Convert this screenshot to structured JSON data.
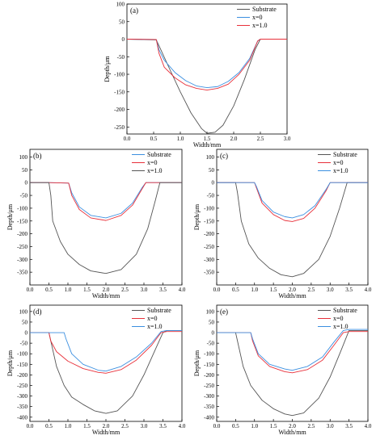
{
  "colors": {
    "substrate": "#555555",
    "x0": "#e8303a",
    "x10": "#3b8fe0"
  },
  "chart_data": [
    {
      "type": "line",
      "panel_label": "(a)",
      "xlabel": "Width/mm",
      "ylabel": "Depth/μm",
      "xlim": [
        0,
        3
      ],
      "ylim": [
        -270,
        100
      ],
      "xticks": [
        "0.0",
        "0.5",
        "1.0",
        "1.5",
        "2.0",
        "2.5",
        "3.0"
      ],
      "yticks": [
        "100",
        "50",
        "0",
        "-50",
        "-100",
        "-150",
        "-200",
        "-250"
      ],
      "legend_position": "top-right",
      "series": [
        {
          "name": "Substrate",
          "color_key": "substrate",
          "points": [
            [
              0,
              0
            ],
            [
              0.55,
              -2
            ],
            [
              0.62,
              -25
            ],
            [
              0.8,
              -85
            ],
            [
              1.0,
              -150
            ],
            [
              1.2,
              -210
            ],
            [
              1.4,
              -255
            ],
            [
              1.5,
              -268
            ],
            [
              1.65,
              -265
            ],
            [
              1.8,
              -245
            ],
            [
              2.0,
              -190
            ],
            [
              2.2,
              -115
            ],
            [
              2.4,
              -30
            ],
            [
              2.5,
              0
            ],
            [
              3.0,
              0
            ]
          ]
        },
        {
          "name": "x=0",
          "color_key": "x10",
          "points": [
            [
              0,
              0
            ],
            [
              0.55,
              -1
            ],
            [
              0.6,
              -30
            ],
            [
              0.7,
              -60
            ],
            [
              0.9,
              -95
            ],
            [
              1.1,
              -118
            ],
            [
              1.3,
              -133
            ],
            [
              1.5,
              -138
            ],
            [
              1.7,
              -135
            ],
            [
              1.9,
              -120
            ],
            [
              2.1,
              -95
            ],
            [
              2.3,
              -55
            ],
            [
              2.45,
              -5
            ],
            [
              2.5,
              0
            ],
            [
              3.0,
              0
            ]
          ]
        },
        {
          "name": "x=1.0",
          "color_key": "x0",
          "points": [
            [
              0,
              0
            ],
            [
              0.55,
              -1
            ],
            [
              0.6,
              -40
            ],
            [
              0.7,
              -80
            ],
            [
              0.9,
              -110
            ],
            [
              1.1,
              -130
            ],
            [
              1.3,
              -140
            ],
            [
              1.5,
              -145
            ],
            [
              1.7,
              -140
            ],
            [
              1.9,
              -128
            ],
            [
              2.1,
              -100
            ],
            [
              2.3,
              -60
            ],
            [
              2.45,
              -5
            ],
            [
              2.5,
              0
            ],
            [
              3.0,
              0
            ]
          ]
        }
      ]
    },
    {
      "type": "line",
      "panel_label": "(b)",
      "xlabel": "Width/mm",
      "ylabel": "Depth/μm",
      "xlim": [
        0,
        4
      ],
      "ylim": [
        -400,
        130
      ],
      "xticks": [
        "0.0",
        "0.5",
        "1.0",
        "1.5",
        "2.0",
        "2.5",
        "3.0",
        "3.5",
        "4.0"
      ],
      "yticks": [
        "100",
        "50",
        "0",
        "-50",
        "-100",
        "-150",
        "-200",
        "-250",
        "-300",
        "-350"
      ],
      "legend_position": "top-right",
      "series": [
        {
          "name": "Substrate",
          "color_key": "x10",
          "points": [
            [
              0,
              0
            ],
            [
              0.5,
              0
            ],
            [
              1.02,
              -2
            ],
            [
              1.1,
              -40
            ],
            [
              1.3,
              -95
            ],
            [
              1.6,
              -128
            ],
            [
              2.0,
              -138
            ],
            [
              2.4,
              -120
            ],
            [
              2.7,
              -80
            ],
            [
              2.95,
              -20
            ],
            [
              3.05,
              0
            ],
            [
              4.0,
              0
            ]
          ]
        },
        {
          "name": "x=0",
          "color_key": "x0",
          "points": [
            [
              0,
              0
            ],
            [
              0.5,
              0
            ],
            [
              1.02,
              -2
            ],
            [
              1.1,
              -50
            ],
            [
              1.3,
              -105
            ],
            [
              1.6,
              -138
            ],
            [
              2.0,
              -148
            ],
            [
              2.4,
              -128
            ],
            [
              2.7,
              -88
            ],
            [
              2.95,
              -25
            ],
            [
              3.05,
              0
            ],
            [
              4.0,
              0
            ]
          ]
        },
        {
          "name": "x=1.0",
          "color_key": "substrate",
          "points": [
            [
              0,
              0
            ],
            [
              0.5,
              0
            ],
            [
              0.55,
              -50
            ],
            [
              0.6,
              -150
            ],
            [
              0.8,
              -230
            ],
            [
              1.0,
              -280
            ],
            [
              1.3,
              -320
            ],
            [
              1.6,
              -345
            ],
            [
              2.0,
              -355
            ],
            [
              2.4,
              -340
            ],
            [
              2.8,
              -280
            ],
            [
              3.1,
              -180
            ],
            [
              3.3,
              -70
            ],
            [
              3.42,
              0
            ],
            [
              4.0,
              0
            ]
          ]
        }
      ]
    },
    {
      "type": "line",
      "panel_label": "(c)",
      "xlabel": "Width/mm",
      "ylabel": "Depth/μm",
      "xlim": [
        0,
        4
      ],
      "ylim": [
        -400,
        130
      ],
      "xticks": [
        "0.0",
        "0.5",
        "1.0",
        "1.5",
        "2.0",
        "2.5",
        "3.0",
        "3.5",
        "4.0"
      ],
      "yticks": [
        "100",
        "50",
        "0",
        "-50",
        "-100",
        "-150",
        "-200",
        "-250",
        "-300",
        "-350"
      ],
      "legend_position": "top-right",
      "series": [
        {
          "name": "Substrate",
          "color_key": "substrate",
          "points": [
            [
              0,
              0
            ],
            [
              0.5,
              0
            ],
            [
              0.55,
              -40
            ],
            [
              0.65,
              -150
            ],
            [
              0.85,
              -240
            ],
            [
              1.1,
              -295
            ],
            [
              1.4,
              -335
            ],
            [
              1.7,
              -360
            ],
            [
              2.0,
              -368
            ],
            [
              2.3,
              -355
            ],
            [
              2.7,
              -300
            ],
            [
              3.0,
              -210
            ],
            [
              3.25,
              -100
            ],
            [
              3.45,
              0
            ],
            [
              4.0,
              0
            ]
          ]
        },
        {
          "name": "x=0",
          "color_key": "x0",
          "points": [
            [
              0,
              0
            ],
            [
              1.0,
              0
            ],
            [
              1.05,
              -20
            ],
            [
              1.2,
              -80
            ],
            [
              1.5,
              -125
            ],
            [
              1.8,
              -148
            ],
            [
              2.0,
              -152
            ],
            [
              2.3,
              -140
            ],
            [
              2.6,
              -100
            ],
            [
              2.9,
              -30
            ],
            [
              3.0,
              0
            ],
            [
              4.0,
              0
            ]
          ]
        },
        {
          "name": "x=1.0",
          "color_key": "x10",
          "points": [
            [
              0,
              0
            ],
            [
              1.0,
              0
            ],
            [
              1.05,
              -15
            ],
            [
              1.2,
              -70
            ],
            [
              1.5,
              -115
            ],
            [
              1.8,
              -133
            ],
            [
              2.0,
              -138
            ],
            [
              2.3,
              -125
            ],
            [
              2.6,
              -90
            ],
            [
              2.9,
              -25
            ],
            [
              3.0,
              0
            ],
            [
              4.0,
              0
            ]
          ]
        }
      ]
    },
    {
      "type": "line",
      "panel_label": "(d)",
      "xlabel": "Width/mm",
      "ylabel": "Depth/μm",
      "xlim": [
        0,
        4
      ],
      "ylim": [
        -420,
        130
      ],
      "xticks": [
        "0.0",
        "0.5",
        "1.0",
        "1.5",
        "2.0",
        "2.5",
        "3.0",
        "3.5",
        "4.0"
      ],
      "yticks": [
        "100",
        "50",
        "0",
        "-50",
        "-100",
        "-150",
        "-200",
        "-250",
        "-300",
        "-350",
        "-400"
      ],
      "legend_position": "top-right",
      "series": [
        {
          "name": "Substrate",
          "color_key": "substrate",
          "points": [
            [
              0,
              0
            ],
            [
              0.5,
              0
            ],
            [
              0.55,
              -40
            ],
            [
              0.7,
              -160
            ],
            [
              0.9,
              -250
            ],
            [
              1.1,
              -305
            ],
            [
              1.4,
              -340
            ],
            [
              1.7,
              -370
            ],
            [
              2.0,
              -382
            ],
            [
              2.3,
              -370
            ],
            [
              2.7,
              -300
            ],
            [
              3.0,
              -200
            ],
            [
              3.3,
              -80
            ],
            [
              3.5,
              0
            ],
            [
              3.6,
              10
            ],
            [
              4.0,
              10
            ]
          ]
        },
        {
          "name": "x=0",
          "color_key": "x0",
          "points": [
            [
              0,
              0
            ],
            [
              0.5,
              0
            ],
            [
              0.55,
              -40
            ],
            [
              0.7,
              -90
            ],
            [
              1.0,
              -135
            ],
            [
              1.4,
              -170
            ],
            [
              1.8,
              -188
            ],
            [
              2.0,
              -192
            ],
            [
              2.4,
              -175
            ],
            [
              2.8,
              -130
            ],
            [
              3.2,
              -60
            ],
            [
              3.45,
              0
            ],
            [
              3.6,
              5
            ],
            [
              4.0,
              5
            ]
          ]
        },
        {
          "name": "x=1.0",
          "color_key": "x10",
          "points": [
            [
              0,
              0
            ],
            [
              0.9,
              0
            ],
            [
              0.95,
              -30
            ],
            [
              1.1,
              -100
            ],
            [
              1.4,
              -150
            ],
            [
              1.8,
              -178
            ],
            [
              2.0,
              -182
            ],
            [
              2.4,
              -160
            ],
            [
              2.8,
              -115
            ],
            [
              3.2,
              -50
            ],
            [
              3.45,
              5
            ],
            [
              3.6,
              10
            ],
            [
              4.0,
              10
            ]
          ]
        }
      ]
    },
    {
      "type": "line",
      "panel_label": "(e)",
      "xlabel": "Width/mm",
      "ylabel": "Depth/μm",
      "xlim": [
        0,
        4
      ],
      "ylim": [
        -420,
        130
      ],
      "xticks": [
        "0.0",
        "0.5",
        "1.0",
        "1.5",
        "2.0",
        "2.5",
        "3.0",
        "3.5",
        "4.0"
      ],
      "yticks": [
        "100",
        "50",
        "0",
        "-50",
        "-100",
        "-150",
        "-200",
        "-250",
        "-300",
        "-350",
        "-400"
      ],
      "legend_position": "top-right",
      "series": [
        {
          "name": "Substrate",
          "color_key": "substrate",
          "points": [
            [
              0,
              0
            ],
            [
              0.5,
              0
            ],
            [
              0.55,
              -40
            ],
            [
              0.7,
              -160
            ],
            [
              0.9,
              -250
            ],
            [
              1.2,
              -320
            ],
            [
              1.5,
              -360
            ],
            [
              1.8,
              -385
            ],
            [
              2.0,
              -392
            ],
            [
              2.3,
              -380
            ],
            [
              2.7,
              -310
            ],
            [
              3.0,
              -210
            ],
            [
              3.3,
              -80
            ],
            [
              3.5,
              10
            ],
            [
              4.0,
              10
            ]
          ]
        },
        {
          "name": "x=0",
          "color_key": "x0",
          "points": [
            [
              0,
              0
            ],
            [
              0.9,
              0
            ],
            [
              0.95,
              -40
            ],
            [
              1.1,
              -110
            ],
            [
              1.4,
              -160
            ],
            [
              1.8,
              -185
            ],
            [
              2.0,
              -190
            ],
            [
              2.4,
              -175
            ],
            [
              2.8,
              -130
            ],
            [
              3.1,
              -60
            ],
            [
              3.35,
              0
            ],
            [
              3.5,
              5
            ],
            [
              4.0,
              5
            ]
          ]
        },
        {
          "name": "x=1.0",
          "color_key": "x10",
          "points": [
            [
              0,
              0
            ],
            [
              0.9,
              0
            ],
            [
              0.95,
              -30
            ],
            [
              1.1,
              -100
            ],
            [
              1.4,
              -150
            ],
            [
              1.8,
              -172
            ],
            [
              2.0,
              -178
            ],
            [
              2.4,
              -160
            ],
            [
              2.8,
              -115
            ],
            [
              3.1,
              -45
            ],
            [
              3.35,
              10
            ],
            [
              3.5,
              15
            ],
            [
              4.0,
              15
            ]
          ]
        }
      ]
    }
  ]
}
